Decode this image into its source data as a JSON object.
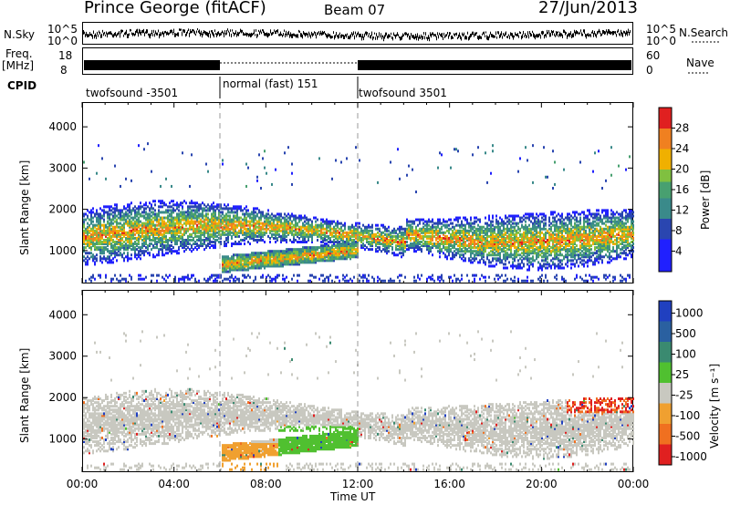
{
  "header": {
    "station": "Prince George (fitACF)",
    "beam": "Beam 07",
    "date": "27/Jun/2013"
  },
  "strip_labels": {
    "nsky": "N.Sky",
    "nsky_ticks": [
      "10^5",
      "10^0"
    ],
    "nsearch": "N.Search",
    "freq": "Freq.",
    "freq_unit": "[MHz]",
    "freq_ticks": [
      "18",
      "8"
    ],
    "nave_ticks": [
      "60",
      "0"
    ],
    "nave": "Nave",
    "cpid": "CPID"
  },
  "cpid_segments": [
    {
      "label": "twofsound -3501",
      "start_h": 0,
      "end_h": 6
    },
    {
      "label": "normal (fast) 151",
      "start_h": 6,
      "end_h": 12
    },
    {
      "label": "twofsound 3501",
      "start_h": 12,
      "end_h": 24
    }
  ],
  "chart_data": [
    {
      "type": "heatmap",
      "title": "",
      "xlabel": "Time UT",
      "ylabel": "Slant Range [km]",
      "xlim": [
        0,
        24
      ],
      "ylim": [
        200,
        4600
      ],
      "x_ticks": [
        "00:00",
        "04:00",
        "08:00",
        "12:00",
        "16:00",
        "20:00",
        "00:00"
      ],
      "y_ticks": [
        1000,
        2000,
        3000,
        4000
      ],
      "colorbar": {
        "label": "Power [dB]",
        "range": [
          0,
          32
        ],
        "ticks": [
          4,
          8,
          12,
          16,
          20,
          24,
          28
        ]
      },
      "echo_bands": [
        {
          "range_km": [
            800,
            2100
          ],
          "time_h": [
            0,
            24
          ],
          "peak_db": 28
        },
        {
          "range_km": [
            500,
            1000
          ],
          "time_h": [
            6,
            12
          ],
          "peak_db": 28
        }
      ]
    },
    {
      "type": "heatmap",
      "title": "",
      "xlabel": "Time UT",
      "ylabel": "Slant Range [km]",
      "xlim": [
        0,
        24
      ],
      "ylim": [
        200,
        4600
      ],
      "x_ticks": [
        "00:00",
        "04:00",
        "08:00",
        "12:00",
        "16:00",
        "20:00",
        "00:00"
      ],
      "y_ticks": [
        1000,
        2000,
        3000,
        4000
      ],
      "colorbar": {
        "label": "Velocity [m s⁻¹]",
        "ticks": [
          "1000",
          "500",
          "100",
          "25",
          "-25",
          "-100",
          "-500",
          "-1000"
        ]
      }
    }
  ],
  "time_label": "Time UT"
}
